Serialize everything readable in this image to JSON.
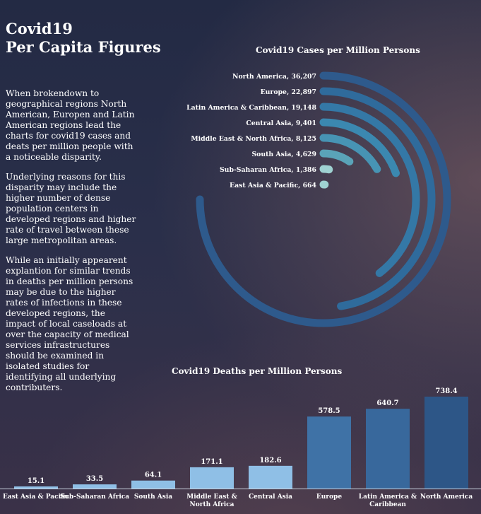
{
  "title": {
    "line1": "Covid19",
    "line2": "Per Capita Figures"
  },
  "body": {
    "p1": "When brokendown to geographical regions North American, Europen and Latin American regions lead the charts for covid19 cases and deats per million people with a noticeable disparity.",
    "p2": "Underlying reasons for this disparity may include the higher number of dense population centers in developed regions and higher rate of travel between these large metropolitan areas.",
    "p3": "While an initially appearent explantion for similar trends in deaths per million persons may be due to the higher rates of infections in these developed regions,  the impact of local caseloads at over the capacity of medical services infrastructures should be examined in isolated studies for identifying all underlying contributers."
  },
  "chart_data": [
    {
      "type": "radial-bar",
      "title": "Covid19 Cases per Million Persons",
      "categories": [
        "North America",
        "Europe",
        "Latin America & Caribbean",
        "Central Asia",
        "Middle East & North Africa",
        "South Asia",
        "Sub-Saharan Africa",
        "East Asia & Pacific"
      ],
      "values": [
        36207,
        22897,
        19148,
        9401,
        8125,
        4629,
        1386,
        664
      ],
      "labels": [
        "North America, 36,207",
        "Europe, 22,897",
        "Latin America & Caribbean, 19,148",
        "Central Asia, 9,401",
        "Middle East & North Africa, 8,125",
        "South Asia, 4,629",
        "Sub-Saharan Africa, 1,386",
        "East Asia & Pacific, 664"
      ],
      "colors": [
        "#2e5a8c",
        "#2f6b9c",
        "#3478a6",
        "#3b88b0",
        "#4794b4",
        "#5aa3b8",
        "#9fd2d2",
        "#9fd2d2"
      ]
    },
    {
      "type": "bar",
      "title": "Covid19 Deaths per Million Persons",
      "categories": [
        "East Asia & Pacific",
        "Sub-Saharan Africa",
        "South Asia",
        "Middle East & North Africa",
        "Central Asia",
        "Europe",
        "Latin America & Caribbean",
        "North America"
      ],
      "category_lines": [
        [
          "East Asia & Pacific"
        ],
        [
          "Sub-Saharan Africa"
        ],
        [
          "South Asia"
        ],
        [
          "Middle East &",
          "North Africa"
        ],
        [
          "Central Asia"
        ],
        [
          "Europe"
        ],
        [
          "Latin America &",
          "Caribbean"
        ],
        [
          "North America"
        ]
      ],
      "values": [
        15.1,
        33.5,
        64.1,
        171.1,
        182.6,
        578.5,
        640.7,
        738.4
      ],
      "value_labels": [
        "15.1",
        "33.5",
        "64.1",
        "171.1",
        "182.6",
        "578.5",
        "640.7",
        "738.4"
      ],
      "ylim": [
        0,
        738.4
      ],
      "colors": [
        "#8fbfe6",
        "#8fbfe6",
        "#8fbfe6",
        "#8fbfe6",
        "#8fbfe6",
        "#3f72a6",
        "#38689c",
        "#2d5687"
      ]
    }
  ]
}
